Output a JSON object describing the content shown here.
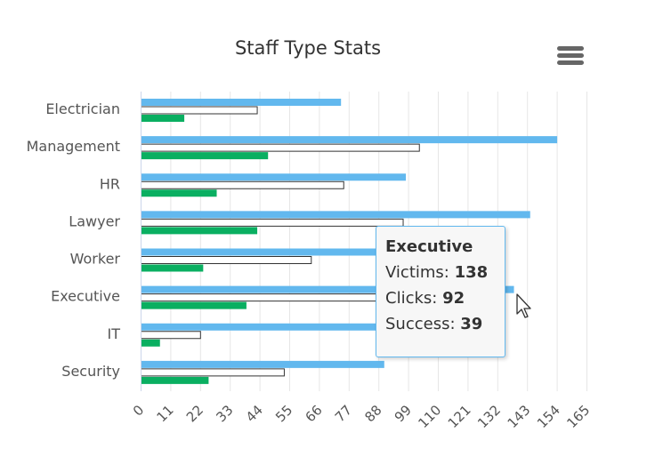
{
  "chart_data": {
    "type": "bar",
    "orientation": "horizontal",
    "title": "Staff Type Stats",
    "categories": [
      "Electrician",
      "Management",
      "HR",
      "Lawyer",
      "Worker",
      "Executive",
      "IT",
      "Security"
    ],
    "series": [
      {
        "name": "Victims",
        "values": [
          74,
          154,
          98,
          144,
          90,
          138,
          97,
          90
        ],
        "color": "#62b8ee"
      },
      {
        "name": "Clicks",
        "values": [
          43,
          103,
          75,
          97,
          63,
          92,
          22,
          53
        ],
        "color": "#ffffff"
      },
      {
        "name": "Success",
        "values": [
          16,
          47,
          28,
          43,
          23,
          39,
          7,
          25
        ],
        "color": "#0aaf61"
      }
    ],
    "xticks": [
      0,
      11,
      22,
      33,
      44,
      55,
      66,
      77,
      88,
      99,
      110,
      121,
      132,
      143,
      154,
      165
    ],
    "xlim": [
      0,
      165
    ],
    "grid": true,
    "legend": "none"
  },
  "tooltip": {
    "title": "Executive",
    "rows": [
      {
        "label": "Victims: ",
        "value": "138"
      },
      {
        "label": "Clicks: ",
        "value": "92"
      },
      {
        "label": "Success: ",
        "value": "39"
      }
    ]
  },
  "icons": {
    "menu": "hamburger-menu-icon",
    "cursor": "mouse-pointer-icon"
  }
}
